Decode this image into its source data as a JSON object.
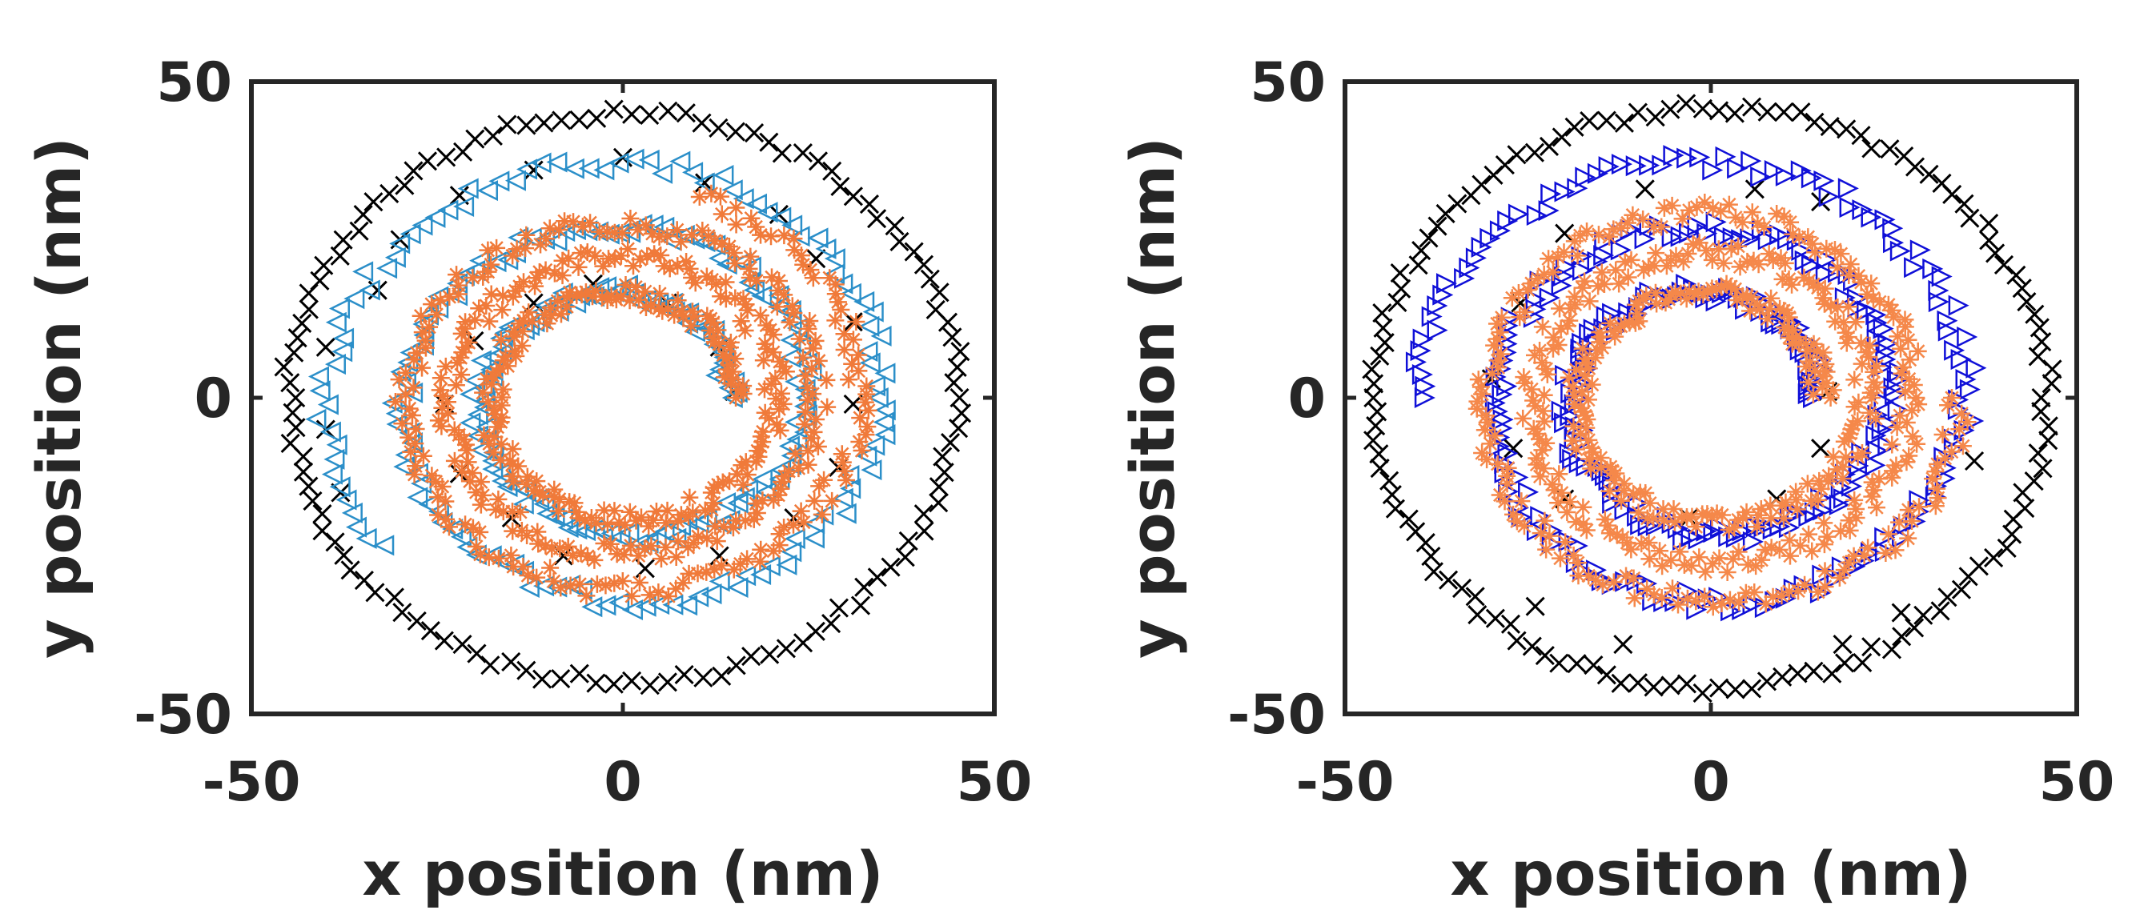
{
  "chart_data": [
    {
      "type": "scatter",
      "title": "",
      "xlabel": "x position (nm)",
      "ylabel": "y position (nm)",
      "xlim": [
        -50,
        50
      ],
      "ylim": [
        -50,
        50
      ],
      "xticks": [
        -50,
        0,
        50
      ],
      "yticks": [
        -50,
        0,
        50
      ],
      "xtick_labels": [
        "-50",
        "0",
        "50"
      ],
      "ytick_labels": [
        "-50",
        "0",
        "50"
      ],
      "grid": false,
      "legend": "none",
      "series": [
        {
          "marker": "x",
          "color": "#000000",
          "shape": "ring",
          "radius_range_nm": [
            44,
            46
          ],
          "count": 118,
          "extra_points": [
            [
              -40,
              8
            ],
            [
              -40,
              -5
            ],
            [
              -38,
              -15
            ],
            [
              -33,
              17
            ],
            [
              -30,
              25
            ],
            [
              -22,
              32
            ],
            [
              -12,
              36
            ],
            [
              0,
              38
            ],
            [
              11,
              34
            ],
            [
              21,
              29
            ],
            [
              26,
              22
            ],
            [
              31,
              12
            ],
            [
              31,
              -1
            ],
            [
              29,
              -11
            ],
            [
              23,
              -19
            ],
            [
              13,
              -25
            ],
            [
              3,
              -27
            ],
            [
              -8,
              -25
            ],
            [
              -15,
              -19
            ],
            [
              -22,
              -12
            ],
            [
              -24,
              -1
            ],
            [
              -20,
              9
            ],
            [
              -12,
              15
            ],
            [
              -4,
              18
            ],
            [
              6,
              15
            ],
            [
              13,
              8
            ],
            [
              15,
              1
            ]
          ]
        },
        {
          "marker": "triangle-left",
          "color": "#2b8fc9",
          "shape": "spiral",
          "r_start_nm": 14,
          "r_end_nm": 41,
          "turns": 2.6,
          "count": 300,
          "band_nm": 1.4
        },
        {
          "marker": "asterisk",
          "color": "#f07a3a",
          "shape": "spiral",
          "r_start_nm": 15,
          "r_end_nm": 33,
          "turns": 3.2,
          "count": 520,
          "band_nm": 1.6
        }
      ]
    },
    {
      "type": "scatter",
      "title": "",
      "xlabel": "x position (nm)",
      "ylabel": "y position (nm)",
      "xlim": [
        -50,
        50
      ],
      "ylim": [
        -50,
        50
      ],
      "xticks": [
        -50,
        0,
        50
      ],
      "yticks": [
        -50,
        0,
        50
      ],
      "xtick_labels": [
        "-50",
        "0",
        "50"
      ],
      "ytick_labels": [
        "-50",
        "0",
        "50"
      ],
      "grid": false,
      "legend": "none",
      "series": [
        {
          "marker": "x",
          "color": "#000000",
          "shape": "ring",
          "radius_range_nm": [
            45,
            47
          ],
          "count": 130,
          "extra_points": [
            [
              -30,
              3
            ],
            [
              -27,
              -8
            ],
            [
              -26,
              15
            ],
            [
              -20,
              26
            ],
            [
              -20,
              -16
            ],
            [
              -3,
              -19
            ],
            [
              9,
              -16
            ],
            [
              15,
              -8
            ],
            [
              16,
              1
            ],
            [
              15,
              31
            ],
            [
              -9,
              33
            ],
            [
              6,
              33
            ],
            [
              -24,
              -33
            ],
            [
              -12,
              -39
            ],
            [
              18,
              -39
            ],
            [
              26,
              -34
            ],
            [
              36,
              -10
            ]
          ]
        },
        {
          "marker": "triangle-right",
          "color": "#1010d8",
          "shape": "spiral",
          "r_start_nm": 14,
          "r_end_nm": 40,
          "turns": 2.5,
          "count": 340,
          "band_nm": 1.5
        },
        {
          "marker": "asterisk",
          "color": "#f5884a",
          "shape": "spiral",
          "r_start_nm": 15,
          "r_end_nm": 34,
          "turns": 3.0,
          "count": 520,
          "band_nm": 1.7
        }
      ]
    }
  ]
}
